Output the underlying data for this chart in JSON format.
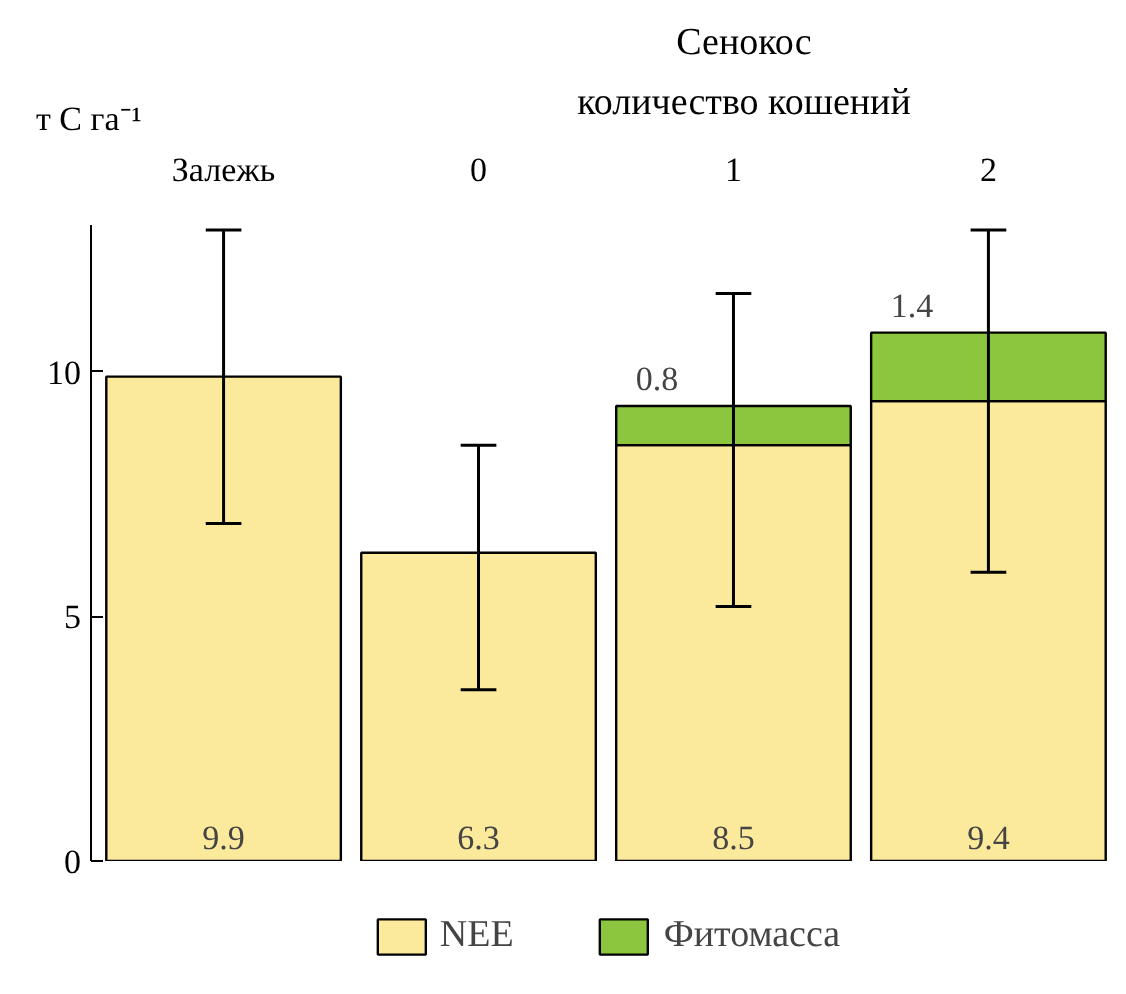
{
  "chart_data": {
    "type": "bar",
    "stacked": true,
    "annotations": [
      "Сенокос",
      "количество кошений"
    ],
    "ylabel": "т C га⁻¹",
    "categories": [
      "Залежь",
      "0",
      "1",
      "2"
    ],
    "series": [
      {
        "name": "NEE",
        "color": "#fbe99c",
        "values": [
          9.9,
          6.3,
          8.5,
          9.4
        ],
        "errors": [
          [
            6.9,
            12.9
          ],
          [
            3.5,
            8.5
          ],
          [
            5.2,
            11.6
          ],
          [
            5.9,
            12.9
          ]
        ]
      },
      {
        "name": "Фитомасса",
        "color": "#8cc63f",
        "values": [
          null,
          null,
          0.8,
          1.4
        ]
      }
    ],
    "data_labels": true,
    "ylim": [
      0,
      13
    ],
    "yticks": [
      0,
      5,
      10
    ],
    "grid": false,
    "legend": "bottom"
  }
}
